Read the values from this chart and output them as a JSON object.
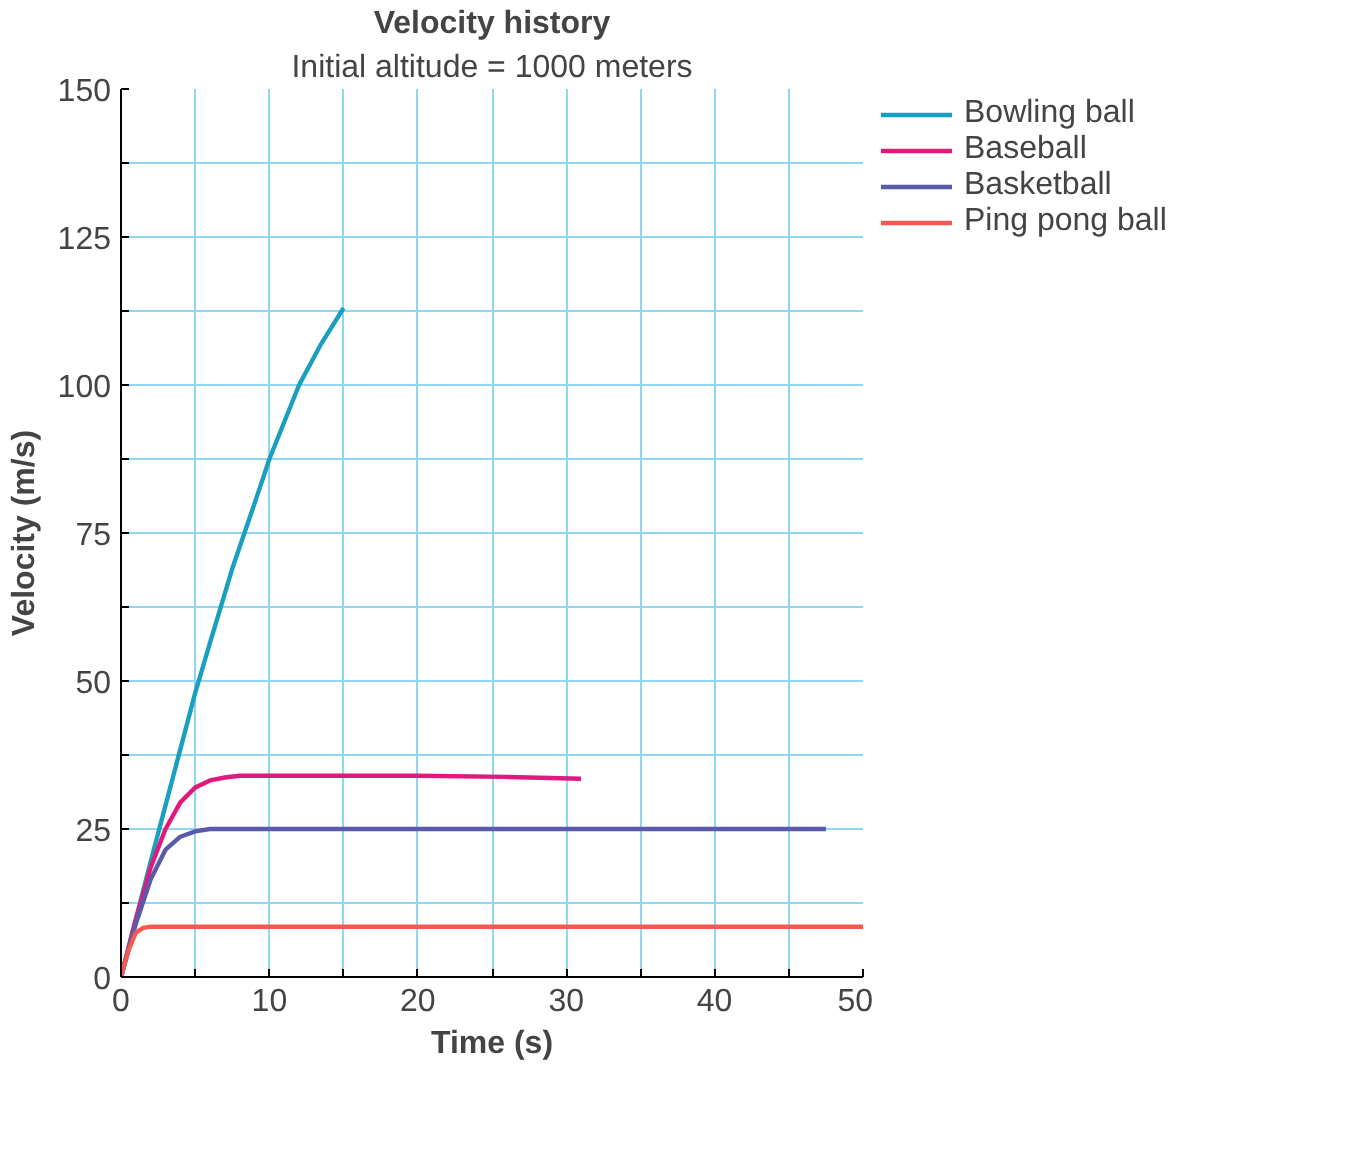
{
  "chart_data": {
    "type": "line",
    "title": "Velocity history",
    "subtitle": "Initial altitude = 1000 meters",
    "xlabel": "Time (s)",
    "ylabel": "Velocity (m/s)",
    "xlim": [
      0,
      50
    ],
    "ylim": [
      0,
      150
    ],
    "xticks": [
      0,
      {
        "value": 5,
        "label": null
      },
      10,
      {
        "value": 15,
        "label": null
      },
      20,
      {
        "value": 25,
        "label": null
      },
      30,
      {
        "value": 35,
        "label": null
      },
      40,
      {
        "value": 45,
        "label": null
      },
      50
    ],
    "yticks": [
      0,
      {
        "value": 12.5,
        "label": null
      },
      25,
      {
        "value": 37.5,
        "label": null
      },
      50,
      {
        "value": 62.5,
        "label": null
      },
      75,
      {
        "value": 87.5,
        "label": null
      },
      100,
      {
        "value": 112.5,
        "label": null
      },
      125,
      {
        "value": 137.5,
        "label": null
      },
      150
    ],
    "grid": true,
    "legend": "top right",
    "marker": "none",
    "line_style": "solid",
    "series": [
      {
        "name": "Bowling ball",
        "color": "#1a9fc0",
        "x": [
          0,
          1,
          2,
          3,
          4,
          5,
          6,
          7.5,
          9,
          10,
          12,
          13.5,
          15
        ],
        "values": [
          0,
          9.8,
          19.5,
          29,
          38.5,
          48,
          56.5,
          69,
          80,
          87.5,
          100,
          107,
          113
        ]
      },
      {
        "name": "Baseball",
        "color": "#e0197d",
        "x": [
          0,
          1,
          2,
          3,
          4,
          5,
          6,
          7,
          8,
          12,
          20,
          26,
          31
        ],
        "values": [
          0,
          9.7,
          18.5,
          25,
          29.5,
          32,
          33.2,
          33.7,
          34,
          34,
          34,
          33.8,
          33.5
        ]
      },
      {
        "name": "Basketball",
        "color": "#5a5aa8",
        "x": [
          0,
          1,
          2,
          3,
          4,
          5,
          6,
          10,
          20,
          30,
          40,
          47.5
        ],
        "values": [
          0,
          9,
          16.5,
          21.5,
          23.7,
          24.6,
          25,
          25,
          25,
          25,
          25,
          25
        ]
      },
      {
        "name": "Ping pong ball",
        "color": "#f05a50",
        "x": [
          0,
          0.5,
          1,
          1.5,
          2,
          10,
          20,
          30,
          40,
          50
        ],
        "values": [
          0,
          4.5,
          7.5,
          8.3,
          8.5,
          8.5,
          8.5,
          8.5,
          8.5,
          8.5
        ]
      }
    ]
  }
}
